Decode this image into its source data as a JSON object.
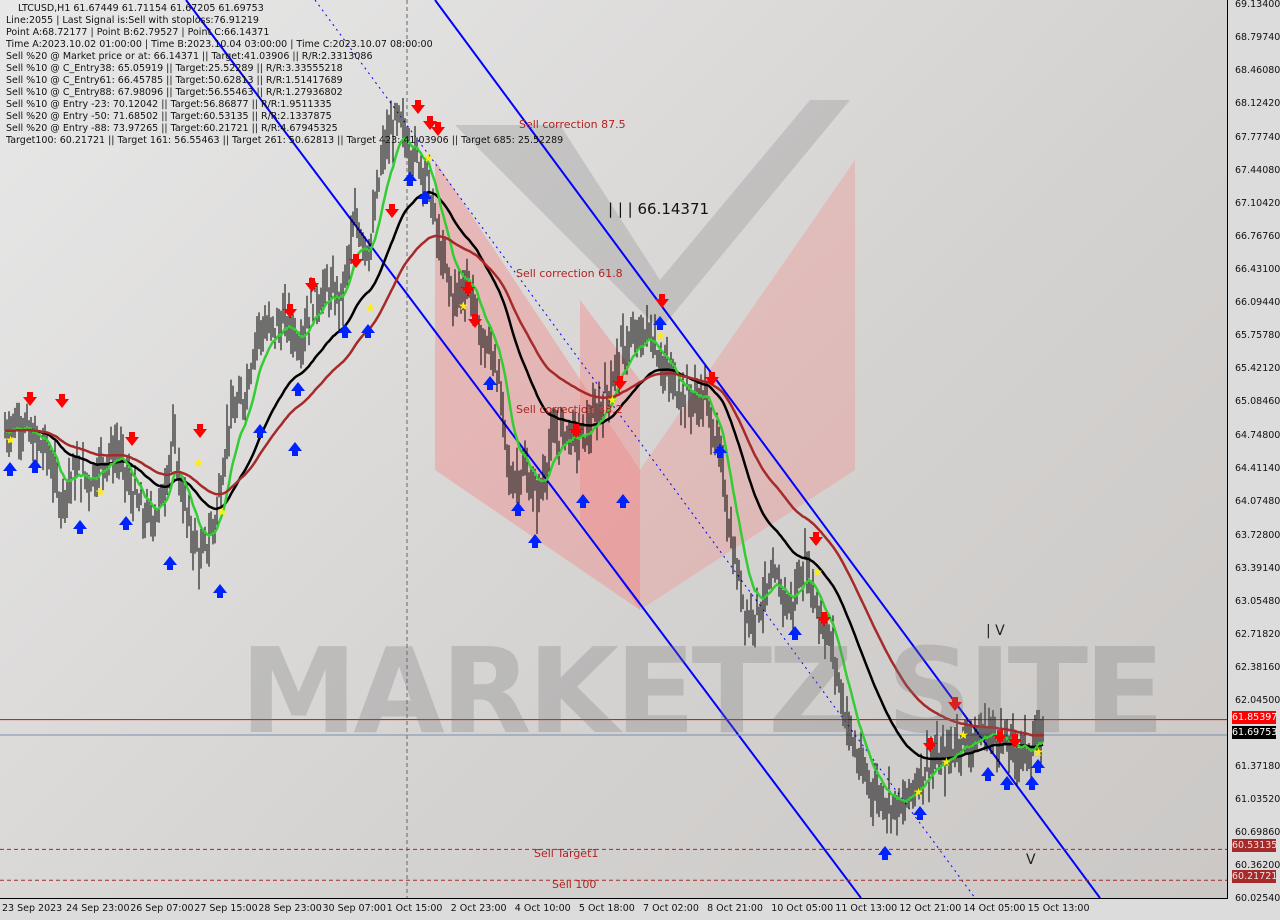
{
  "info_panel": {
    "symbol_line": "LTCUSD,H1  61.67449 61.71154 61.67205 61.69753",
    "lines": [
      "Line:2055 | Last Signal is:Sell with stoploss:76.91219",
      "Point A:68.72177 | Point B:62.79527 | Point C:66.14371",
      "Time A:2023.10.02 01:00:00 | Time B:2023.10.04 03:00:00 | Time C:2023.10.07 08:00:00",
      "Sell %20 @ Market price or at: 66.14371 || Target:41.03906 || R/R:2.3313086",
      "Sell %10 @ C_Entry38: 65.05919 || Target:25.52289 || R/R:3.33555218",
      "Sell %10 @ C_Entry61: 66.45785 || Target:50.62813 || R/R:1.51417689",
      "Sell %10 @ C_Entry88: 67.98096 || Target:56.55463 || R/R:1.27936802",
      "Sell %10 @ Entry -23: 70.12042 || Target:56.86877 || R/R:1.9511335",
      "Sell %20 @ Entry -50: 71.68502 || Target:60.53135 || R/R:2.1337875",
      "Sell %20 @ Entry -88: 73.97265 || Target:60.21721 || R/R:4.67945325",
      "Target100: 60.21721 || Target 161: 56.55463 || Target 261: 50.62813 || Target 423: 41.03906 || Target 685: 25.52289"
    ]
  },
  "annotations": {
    "sell_correction_875": "Sell correction 87.5",
    "sell_correction_618": "Sell correction 61.8",
    "sell_correction_382": "Sell correction 38.2",
    "point_c_label": "| | | 66.14371",
    "sell_target1": "Sell Target1",
    "sell_100": "Sell 100",
    "marker_v1": "| V",
    "marker_v2": "V"
  },
  "watermark": "MARKETZ SITE",
  "price_tags": {
    "stoploss_line": {
      "value": "61.85397",
      "color": "#ff0000"
    },
    "current_price": {
      "value": "61.69753",
      "color": "#000000"
    },
    "sell_target1": {
      "value": "60.53135",
      "color": "#a52a2a"
    },
    "sell_100": {
      "value": "60.21721",
      "color": "#a52a2a"
    }
  },
  "chart_data": {
    "type": "line",
    "symbol": "LTCUSD",
    "timeframe": "H1",
    "ylim": [
      60.0254,
      69.134
    ],
    "y_ticks": [
      "69.13400",
      "68.79740",
      "68.46080",
      "68.12420",
      "67.77740",
      "67.44080",
      "67.10420",
      "66.76760",
      "66.43100",
      "66.09440",
      "65.75780",
      "65.42120",
      "65.08460",
      "64.74800",
      "64.41140",
      "64.07480",
      "63.72800",
      "63.39140",
      "63.05480",
      "62.71820",
      "62.38160",
      "62.04500",
      "61.37180",
      "61.03520",
      "60.69860",
      "60.36200",
      "60.02540"
    ],
    "x_ticks": [
      "23 Sep 2023",
      "24 Sep 23:00",
      "26 Sep 07:00",
      "27 Sep 15:00",
      "28 Sep 23:00",
      "30 Sep 07:00",
      "1 Oct 15:00",
      "2 Oct 23:00",
      "4 Oct 10:00",
      "5 Oct 18:00",
      "7 Oct 02:00",
      "8 Oct 21:00",
      "10 Oct 05:00",
      "11 Oct 13:00",
      "12 Oct 21:00",
      "14 Oct 05:00",
      "15 Oct 13:00"
    ],
    "close_series": [
      64.8,
      64.91,
      64.7,
      64.6,
      64.09,
      64.4,
      64.29,
      64.5,
      64.6,
      64.19,
      63.89,
      63.99,
      64.7,
      63.89,
      63.48,
      63.89,
      64.91,
      65.11,
      65.82,
      65.82,
      65.93,
      65.72,
      66.13,
      66.23,
      66.13,
      66.94,
      66.64,
      67.66,
      67.96,
      67.66,
      67.45,
      66.64,
      66.13,
      66.33,
      65.72,
      65.52,
      64.29,
      64.4,
      64.09,
      64.7,
      64.8,
      64.7,
      64.91,
      65.21,
      65.62,
      65.72,
      65.82,
      65.42,
      65.21,
      65.11,
      65.11,
      64.5,
      63.48,
      62.87,
      63.07,
      63.28,
      62.97,
      63.48,
      62.97,
      62.56,
      61.85,
      61.34,
      61.13,
      61.03,
      60.93,
      61.24,
      61.44,
      61.44,
      61.65,
      61.65,
      61.75,
      61.65,
      61.54,
      61.54,
      61.7
    ],
    "horizontal_levels": [
      61.85397,
      61.69753,
      60.53135,
      60.21721
    ],
    "moving_average_colors": [
      "#33cc33",
      "#000000",
      "#a52a2a"
    ],
    "channel_color": "#0000ff",
    "grid": false
  }
}
